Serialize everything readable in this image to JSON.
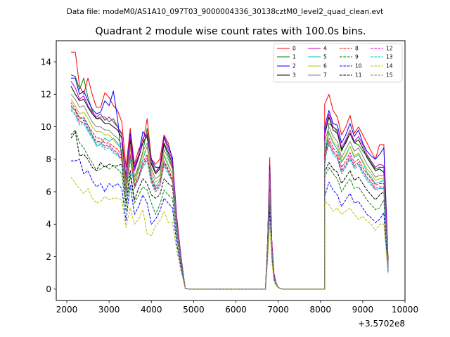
{
  "header": {
    "file_label": "Data file: modeM0/AS1A10_097T03_9000004336_30138cztM0_level2_quad_clean.evt"
  },
  "chart_data": {
    "type": "line",
    "title": "Quadrant 2 module wise count rates with 100.0s bins.",
    "xlabel": "",
    "ylabel": "",
    "x_offset_label": "+3.5702e8",
    "xlim": [
      1750,
      10000
    ],
    "ylim": [
      -0.7,
      15.3
    ],
    "x_ticks": [
      2000,
      3000,
      4000,
      5000,
      6000,
      7000,
      8000,
      9000,
      10000
    ],
    "x_tick_labels": [
      "2000",
      "3000",
      "4000",
      "5000",
      "6000",
      "7000",
      "8000",
      "9000",
      "10000"
    ],
    "y_ticks": [
      0,
      2,
      4,
      6,
      8,
      10,
      12,
      14
    ],
    "y_tick_labels": [
      "0",
      "2",
      "4",
      "6",
      "8",
      "10",
      "12",
      "14"
    ],
    "legend_position": "top-right",
    "segments": [
      {
        "x_start": 2100,
        "step": 100,
        "count": 28
      },
      {
        "x_start": 4900,
        "step": 100,
        "count": 19
      },
      {
        "x_start": 6700,
        "step": 50,
        "count": 8
      },
      {
        "x_start": 7100,
        "step": 100,
        "count": 11
      },
      {
        "x_start": 8100,
        "step": 100,
        "count": 16
      }
    ],
    "series": [
      {
        "name": "0",
        "color": "#ff0000",
        "dash": "solid",
        "seg1": [
          14.6,
          14.6,
          12.5,
          12.0,
          13.0,
          12.0,
          11.2,
          11.2,
          12.1,
          11.8,
          11.3,
          11.0,
          10.3,
          7.5,
          9.9,
          7.7,
          8.6,
          9.0,
          10.5,
          8.0,
          7.7,
          8.0,
          9.5,
          9.0,
          8.0,
          4.5,
          2.0,
          0.05
        ],
        "seg3": [
          0.05,
          3.0,
          8.1,
          3.0,
          1.0,
          0.4,
          0.1,
          0.05
        ],
        "seg5": [
          11.4,
          12.0,
          11.0,
          10.6,
          9.5,
          10.0,
          10.7,
          9.6,
          10.0,
          9.5,
          9.0,
          8.5,
          8.0,
          8.9,
          8.9,
          1.8
        ]
      },
      {
        "name": "1",
        "color": "#008000",
        "dash": "solid",
        "seg1": [
          13.2,
          13.1,
          12.3,
          13.0,
          11.8,
          11.0,
          10.5,
          10.6,
          10.6,
          10.3,
          10.5,
          10.0,
          9.5,
          6.3,
          9.2,
          6.9,
          7.5,
          8.5,
          9.9,
          8.0,
          7.2,
          7.5,
          8.9,
          8.2,
          7.5,
          4.3,
          1.9,
          0.05
        ],
        "seg3": [
          0.05,
          2.9,
          7.4,
          2.8,
          0.9,
          0.4,
          0.1,
          0.05
        ],
        "seg5": [
          7.6,
          10.2,
          10.0,
          9.7,
          8.5,
          9.1,
          9.6,
          9.0,
          8.9,
          8.5,
          8.2,
          7.8,
          7.4,
          7.5,
          7.5,
          1.5
        ]
      },
      {
        "name": "2",
        "color": "#0000ff",
        "dash": "solid",
        "seg1": [
          13.0,
          13.0,
          12.0,
          12.2,
          11.6,
          11.1,
          10.8,
          10.9,
          11.6,
          11.3,
          12.2,
          10.5,
          8.0,
          7.0,
          9.6,
          7.5,
          8.3,
          9.7,
          9.3,
          8.0,
          7.5,
          7.5,
          9.4,
          8.8,
          8.1,
          4.4,
          2.0,
          0.05
        ],
        "seg3": [
          0.05,
          2.9,
          7.6,
          2.9,
          0.9,
          0.4,
          0.1,
          0.05
        ],
        "seg5": [
          10.0,
          11.0,
          10.2,
          10.1,
          9.0,
          9.5,
          10.2,
          9.4,
          9.8,
          9.0,
          8.5,
          8.2,
          8.0,
          8.3,
          8.7,
          1.7
        ]
      },
      {
        "name": "3",
        "color": "#000000",
        "dash": "solid",
        "seg1": [
          12.5,
          12.0,
          11.6,
          11.7,
          11.2,
          10.8,
          10.5,
          10.5,
          10.2,
          10.2,
          10.0,
          9.8,
          9.3,
          6.7,
          9.2,
          7.3,
          8.1,
          9.0,
          9.5,
          7.7,
          7.1,
          7.4,
          9.0,
          8.4,
          7.7,
          4.3,
          1.9,
          0.05
        ],
        "seg3": [
          0.05,
          2.8,
          7.1,
          2.8,
          0.9,
          0.4,
          0.1,
          0.05
        ],
        "seg5": [
          9.5,
          10.6,
          9.8,
          9.6,
          8.6,
          9.0,
          9.6,
          9.0,
          9.2,
          8.7,
          8.1,
          7.7,
          7.3,
          7.4,
          7.2,
          1.5
        ]
      },
      {
        "name": "4",
        "color": "#bf00bf",
        "dash": "solid",
        "seg1": [
          12.8,
          12.4,
          11.7,
          11.9,
          11.3,
          10.9,
          10.6,
          10.8,
          10.4,
          10.6,
          10.3,
          10.0,
          9.6,
          6.9,
          9.4,
          7.3,
          8.3,
          9.3,
          9.6,
          7.8,
          7.2,
          7.6,
          9.3,
          8.6,
          7.9,
          4.4,
          1.9,
          0.05
        ],
        "seg3": [
          0.05,
          2.9,
          7.3,
          2.9,
          0.9,
          0.4,
          0.1,
          0.05
        ],
        "seg5": [
          9.7,
          10.8,
          10.0,
          9.8,
          8.7,
          9.2,
          9.8,
          9.1,
          9.4,
          8.9,
          8.3,
          7.9,
          7.5,
          7.7,
          7.6,
          1.6
        ]
      },
      {
        "name": "5",
        "color": "#00bfbf",
        "dash": "solid",
        "seg1": [
          11.2,
          11.0,
          10.6,
          10.5,
          10.1,
          9.5,
          8.8,
          8.9,
          9.3,
          9.1,
          9.3,
          9.0,
          8.5,
          6.1,
          8.7,
          6.6,
          7.3,
          8.0,
          8.8,
          7.0,
          6.3,
          6.7,
          8.2,
          7.6,
          7.1,
          4.0,
          1.8,
          0.05
        ],
        "seg3": [
          0.05,
          2.6,
          6.5,
          2.6,
          0.8,
          0.4,
          0.1,
          0.05
        ],
        "seg5": [
          8.5,
          9.6,
          9.0,
          8.6,
          7.8,
          8.2,
          8.8,
          8.1,
          8.3,
          7.8,
          7.2,
          6.9,
          6.5,
          6.6,
          6.7,
          1.3
        ]
      },
      {
        "name": "6",
        "color": "#bfbf00",
        "dash": "solid",
        "seg1": [
          11.7,
          11.3,
          10.8,
          10.9,
          10.5,
          10.0,
          9.7,
          9.7,
          9.5,
          9.5,
          9.2,
          8.9,
          8.6,
          6.3,
          8.7,
          6.7,
          7.4,
          8.3,
          8.7,
          7.2,
          6.6,
          6.8,
          8.3,
          7.7,
          7.1,
          4.0,
          1.8,
          0.05
        ],
        "seg3": [
          0.05,
          2.6,
          6.6,
          2.6,
          0.8,
          0.4,
          0.1,
          0.05
        ],
        "seg5": [
          8.8,
          9.7,
          9.1,
          8.8,
          7.9,
          8.3,
          8.8,
          8.2,
          8.4,
          7.9,
          7.4,
          7.1,
          6.7,
          6.8,
          6.8,
          1.4
        ]
      },
      {
        "name": "7",
        "color": "#808080",
        "dash": "solid",
        "seg1": [
          12.0,
          11.7,
          11.2,
          11.3,
          10.8,
          10.3,
          10.0,
          10.0,
          9.8,
          9.8,
          9.5,
          9.3,
          8.9,
          6.5,
          8.9,
          6.9,
          7.6,
          8.5,
          9.0,
          7.4,
          6.8,
          7.0,
          8.6,
          8.0,
          7.4,
          4.1,
          1.8,
          0.05
        ],
        "seg3": [
          0.05,
          2.7,
          6.8,
          2.7,
          0.8,
          0.4,
          0.1,
          0.05
        ],
        "seg5": [
          9.1,
          10.0,
          9.4,
          9.1,
          8.1,
          8.6,
          9.1,
          8.5,
          8.7,
          8.2,
          7.7,
          7.3,
          6.9,
          7.0,
          7.0,
          1.4
        ]
      },
      {
        "name": "8",
        "color": "#ff0000",
        "dash": "dashed",
        "seg1": [
          11.5,
          11.1,
          10.5,
          10.6,
          10.1,
          9.7,
          9.3,
          9.3,
          9.0,
          9.0,
          8.8,
          8.6,
          8.2,
          6.0,
          8.3,
          6.4,
          7.0,
          7.8,
          8.3,
          6.8,
          6.2,
          6.5,
          7.9,
          7.4,
          6.8,
          3.8,
          1.7,
          0.05
        ],
        "seg3": [
          0.05,
          2.5,
          6.2,
          2.5,
          0.8,
          0.3,
          0.1,
          0.05
        ],
        "seg5": [
          8.4,
          9.3,
          8.7,
          8.4,
          7.5,
          7.9,
          8.4,
          7.8,
          8.0,
          7.5,
          7.1,
          6.8,
          6.4,
          6.5,
          6.5,
          1.3
        ]
      },
      {
        "name": "9",
        "color": "#008000",
        "dash": "dashed",
        "seg1": [
          9.5,
          9.8,
          9.0,
          8.7,
          8.2,
          7.8,
          7.3,
          7.4,
          7.6,
          7.4,
          7.6,
          7.4,
          7.1,
          4.8,
          7.0,
          5.3,
          5.8,
          6.3,
          6.1,
          5.3,
          4.6,
          5.2,
          6.1,
          5.8,
          5.6,
          3.2,
          1.5,
          0.05
        ],
        "seg3": [
          0.05,
          2.1,
          5.4,
          2.1,
          0.7,
          0.3,
          0.1,
          0.05
        ],
        "seg5": [
          6.9,
          7.5,
          7.1,
          6.8,
          6.0,
          6.4,
          6.8,
          6.2,
          6.3,
          5.9,
          5.5,
          5.2,
          4.9,
          5.0,
          5.5,
          1.1
        ]
      },
      {
        "name": "10",
        "color": "#0000ff",
        "dash": "dashed",
        "seg1": [
          7.9,
          7.9,
          8.0,
          7.1,
          7.3,
          6.7,
          6.3,
          6.5,
          6.0,
          6.5,
          6.3,
          6.5,
          6.2,
          4.2,
          6.4,
          4.6,
          5.1,
          5.8,
          5.3,
          4.0,
          4.3,
          4.8,
          5.6,
          5.3,
          5.0,
          2.8,
          1.3,
          0.05
        ],
        "seg3": [
          0.05,
          1.9,
          4.8,
          1.9,
          0.6,
          0.3,
          0.1,
          0.05
        ],
        "seg5": [
          5.7,
          6.6,
          6.1,
          5.8,
          5.1,
          5.5,
          5.9,
          5.3,
          5.4,
          5.0,
          4.6,
          4.4,
          4.1,
          4.3,
          4.7,
          1.0
        ]
      },
      {
        "name": "11",
        "color": "#000000",
        "dash": "dashed",
        "seg1": [
          9.3,
          9.7,
          8.2,
          8.3,
          8.0,
          7.5,
          7.3,
          7.8,
          7.5,
          7.7,
          7.6,
          7.6,
          7.7,
          5.3,
          7.3,
          5.5,
          6.2,
          6.8,
          6.5,
          5.8,
          5.6,
          5.8,
          6.8,
          6.5,
          6.3,
          3.6,
          1.6,
          0.05
        ],
        "seg3": [
          0.05,
          2.2,
          5.8,
          2.2,
          0.7,
          0.3,
          0.1,
          0.05
        ],
        "seg5": [
          7.2,
          7.8,
          7.4,
          7.2,
          6.5,
          6.9,
          7.3,
          6.7,
          6.9,
          6.5,
          6.1,
          5.8,
          5.5,
          5.8,
          6.0,
          1.2
        ]
      },
      {
        "name": "12",
        "color": "#bf00bf",
        "dash": "dashed",
        "seg1": [
          11.3,
          11.0,
          10.3,
          10.4,
          9.9,
          9.5,
          9.1,
          9.1,
          8.8,
          8.9,
          8.6,
          8.4,
          8.0,
          5.9,
          8.2,
          6.3,
          6.9,
          7.7,
          8.1,
          6.7,
          6.1,
          6.4,
          7.8,
          7.3,
          6.7,
          3.7,
          1.7,
          0.05
        ],
        "seg3": [
          0.05,
          2.5,
          6.1,
          2.5,
          0.8,
          0.3,
          0.1,
          0.05
        ],
        "seg5": [
          8.2,
          9.1,
          8.5,
          8.2,
          7.3,
          7.7,
          8.2,
          7.6,
          7.8,
          7.3,
          6.9,
          6.6,
          6.2,
          6.3,
          6.3,
          1.3
        ]
      },
      {
        "name": "13",
        "color": "#00bfbf",
        "dash": "dashed",
        "seg1": [
          11.0,
          10.7,
          10.1,
          10.2,
          9.7,
          9.3,
          8.9,
          8.9,
          8.6,
          8.7,
          8.4,
          8.2,
          7.9,
          5.8,
          8.0,
          6.2,
          6.8,
          7.5,
          7.9,
          6.5,
          6.0,
          6.3,
          7.6,
          7.1,
          6.6,
          3.7,
          1.6,
          0.05
        ],
        "seg3": [
          0.05,
          2.4,
          6.0,
          2.4,
          0.7,
          0.3,
          0.1,
          0.05
        ],
        "seg5": [
          8.0,
          8.9,
          8.3,
          8.0,
          7.1,
          7.5,
          8.0,
          7.4,
          7.6,
          7.1,
          6.7,
          6.4,
          6.1,
          6.2,
          6.2,
          1.2
        ]
      },
      {
        "name": "14",
        "color": "#bfbf00",
        "dash": "dashed",
        "seg1": [
          6.9,
          6.5,
          6.2,
          5.9,
          6.2,
          5.6,
          5.3,
          5.4,
          5.7,
          5.5,
          5.6,
          5.6,
          5.5,
          3.8,
          5.0,
          4.0,
          4.3,
          4.9,
          3.4,
          3.3,
          3.9,
          4.2,
          4.8,
          4.1,
          4.1,
          2.4,
          1.1,
          0.05
        ],
        "seg3": [
          0.05,
          1.7,
          4.2,
          1.7,
          0.5,
          0.2,
          0.1,
          0.05
        ],
        "seg5": [
          5.4,
          5.2,
          4.8,
          5.0,
          4.6,
          4.8,
          5.0,
          4.6,
          4.3,
          4.5,
          4.2,
          4.0,
          3.6,
          4.0,
          4.0,
          0.9
        ]
      },
      {
        "name": "15",
        "color": "#808080",
        "dash": "dashed",
        "seg1": [
          11.1,
          10.8,
          10.2,
          10.3,
          9.8,
          9.4,
          9.0,
          9.0,
          8.7,
          8.8,
          8.5,
          8.3,
          8.0,
          5.8,
          8.1,
          6.2,
          6.8,
          7.6,
          8.0,
          6.6,
          6.0,
          6.3,
          7.7,
          7.2,
          6.6,
          3.7,
          1.6,
          0.05
        ],
        "seg3": [
          0.05,
          2.4,
          6.0,
          2.4,
          0.7,
          0.3,
          0.1,
          0.05
        ],
        "seg5": [
          8.1,
          9.0,
          8.4,
          8.1,
          7.2,
          7.6,
          8.1,
          7.5,
          7.7,
          7.2,
          6.8,
          6.5,
          6.1,
          6.2,
          6.2,
          1.2
        ]
      }
    ]
  }
}
